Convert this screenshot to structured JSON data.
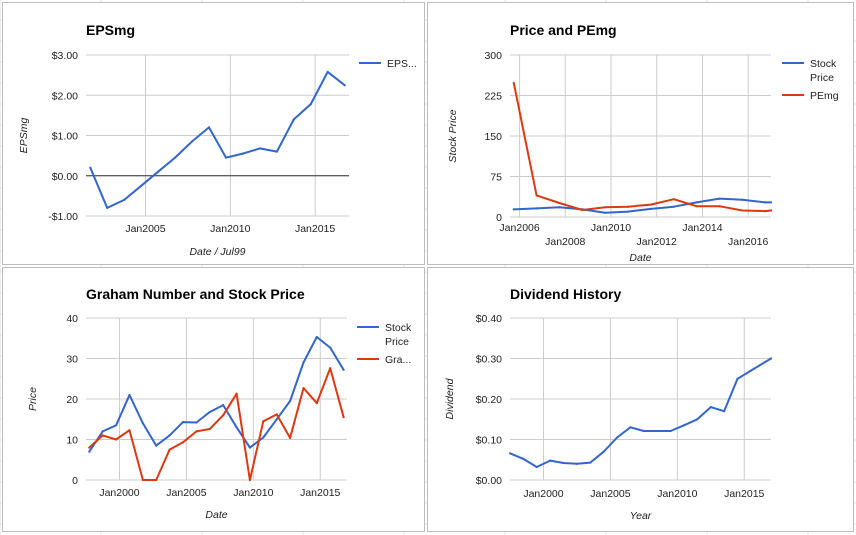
{
  "chart_data": [
    {
      "type": "line",
      "title": "EPSmg",
      "xlabel": "Date / Jul99",
      "ylabel": "EPSmg",
      "x_type": "date",
      "xlim": [
        "2001-06-30",
        "2016-12-31"
      ],
      "ylim": [
        -1.0,
        3.0
      ],
      "x_ticks": [
        {
          "date": "2005-01-01",
          "label": "Jan2005"
        },
        {
          "date": "2010-01-01",
          "label": "Jan2010"
        },
        {
          "date": "2015-01-01",
          "label": "Jan2015"
        }
      ],
      "y_ticks": [
        {
          "value": 3,
          "label": "$3.00"
        },
        {
          "value": 2,
          "label": "$2.00"
        },
        {
          "value": 1,
          "label": "$1.00"
        },
        {
          "value": 0,
          "label": "$0.00"
        },
        {
          "value": -1,
          "label": "-$1.00"
        }
      ],
      "zero_line": true,
      "legend": {
        "position": "right",
        "entries": [
          "EPS..."
        ]
      },
      "series": [
        {
          "name": "EPS...",
          "color": "#3366cc",
          "x": [
            "2001-09-30",
            "2002-09-30",
            "2003-09-30",
            "2004-09-30",
            "2005-09-30",
            "2006-09-30",
            "2007-09-30",
            "2008-09-30",
            "2009-09-30",
            "2010-09-30",
            "2011-09-30",
            "2012-09-30",
            "2013-09-30",
            "2014-09-30",
            "2015-09-30",
            "2016-09-30"
          ],
          "y": [
            0.2,
            -0.8,
            -0.6,
            -0.25,
            0.1,
            0.45,
            0.85,
            1.2,
            0.45,
            0.55,
            0.68,
            0.6,
            1.4,
            1.78,
            2.58,
            2.25
          ]
        }
      ]
    },
    {
      "type": "line",
      "title": "Price and PEmg",
      "xlabel": "Date",
      "ylabel": "Stock Price",
      "x_type": "date",
      "xlim": [
        "2005-08-01",
        "2016-12-31"
      ],
      "ylim": [
        0,
        300
      ],
      "x_ticks": [
        {
          "date": "2006-01-01",
          "label": "Jan2006",
          "row": 0
        },
        {
          "date": "2008-01-01",
          "label": "Jan2008",
          "row": 1
        },
        {
          "date": "2010-01-01",
          "label": "Jan2010",
          "row": 0
        },
        {
          "date": "2012-01-01",
          "label": "Jan2012",
          "row": 1
        },
        {
          "date": "2014-01-01",
          "label": "Jan2014",
          "row": 0
        },
        {
          "date": "2016-01-01",
          "label": "Jan2016",
          "row": 1
        }
      ],
      "y_ticks": [
        {
          "value": 300,
          "label": "300"
        },
        {
          "value": 225,
          "label": "225"
        },
        {
          "value": 150,
          "label": "150"
        },
        {
          "value": 75,
          "label": "75"
        },
        {
          "value": 0,
          "label": "0"
        }
      ],
      "legend": {
        "position": "right",
        "entries": [
          "Stock Price",
          "PEmg"
        ]
      },
      "series": [
        {
          "name": "Stock Price",
          "legend_lines": [
            "Stock",
            "Price"
          ],
          "color": "#3366cc",
          "x": [
            "2005-09-30",
            "2006-09-30",
            "2007-09-30",
            "2008-09-30",
            "2009-09-30",
            "2010-09-30",
            "2011-09-30",
            "2012-09-30",
            "2013-09-30",
            "2014-09-30",
            "2015-09-30",
            "2016-09-30",
            "2016-12-31"
          ],
          "y": [
            14,
            16,
            18,
            14,
            8,
            10,
            15,
            19,
            27,
            34,
            32,
            27,
            27
          ]
        },
        {
          "name": "PEmg",
          "legend_lines": [
            "PEmg"
          ],
          "color": "#dc3912",
          "x": [
            "2005-09-30",
            "2006-09-30",
            "2007-09-30",
            "2008-09-30",
            "2009-09-30",
            "2010-09-30",
            "2011-09-30",
            "2012-09-30",
            "2013-09-30",
            "2014-09-30",
            "2015-09-30",
            "2016-09-30",
            "2016-12-31"
          ],
          "y": [
            248,
            40,
            26,
            13,
            18,
            19,
            23,
            33,
            20,
            20,
            12,
            11,
            12
          ]
        }
      ]
    },
    {
      "type": "line",
      "title": "Graham Number and Stock Price",
      "xlabel": "Date",
      "ylabel": "Price",
      "x_type": "date",
      "xlim": [
        "1997-07-01",
        "2016-12-31"
      ],
      "ylim": [
        0,
        40
      ],
      "x_ticks": [
        {
          "date": "2000-01-01",
          "label": "Jan2000"
        },
        {
          "date": "2005-01-01",
          "label": "Jan2005"
        },
        {
          "date": "2010-01-01",
          "label": "Jan2010"
        },
        {
          "date": "2015-01-01",
          "label": "Jan2015"
        }
      ],
      "y_ticks": [
        {
          "value": 40,
          "label": "40"
        },
        {
          "value": 30,
          "label": "30"
        },
        {
          "value": 20,
          "label": "20"
        },
        {
          "value": 10,
          "label": "10"
        },
        {
          "value": 0,
          "label": "0"
        }
      ],
      "legend": {
        "position": "right",
        "entries": [
          "Stock Price",
          "Gra..."
        ]
      },
      "series": [
        {
          "name": "Stock Price",
          "legend_lines": [
            "Stock",
            "Price"
          ],
          "color": "#3366cc",
          "x": [
            "1997-09-30",
            "1998-09-30",
            "1999-09-30",
            "2000-09-30",
            "2001-09-30",
            "2002-09-30",
            "2003-09-30",
            "2004-09-30",
            "2005-09-30",
            "2006-09-30",
            "2007-09-30",
            "2008-09-30",
            "2009-09-30",
            "2010-09-30",
            "2011-09-30",
            "2012-09-30",
            "2013-09-30",
            "2014-09-30",
            "2015-09-30",
            "2016-09-30"
          ],
          "y": [
            7,
            12,
            13.5,
            21,
            14,
            8.5,
            11,
            14.3,
            14.2,
            16.8,
            18.5,
            13,
            8,
            10.5,
            15,
            19.5,
            29,
            35.3,
            32.7,
            27.2
          ]
        },
        {
          "name": "Gra...",
          "legend_lines": [
            "Gra..."
          ],
          "color": "#dc3912",
          "x": [
            "1997-09-30",
            "1998-09-30",
            "1999-09-30",
            "2000-09-30",
            "2001-09-30",
            "2002-09-30",
            "2003-09-30",
            "2004-09-30",
            "2005-09-30",
            "2006-09-30",
            "2007-09-30",
            "2008-09-30",
            "2009-09-30",
            "2010-09-30",
            "2011-09-30",
            "2012-09-30",
            "2013-09-30",
            "2014-09-30",
            "2015-09-30",
            "2016-09-30"
          ],
          "y": [
            8,
            11,
            10,
            12.3,
            0,
            0,
            7.5,
            9.3,
            12,
            12.6,
            16,
            21.3,
            0,
            14.5,
            16.2,
            10.4,
            22.7,
            19,
            27.6,
            15.5
          ]
        }
      ]
    },
    {
      "type": "line",
      "title": "Dividend History",
      "xlabel": "Year",
      "ylabel": "Dividend",
      "x_type": "date",
      "xlim": [
        "1997-07-01",
        "2016-12-31"
      ],
      "ylim": [
        0,
        0.4
      ],
      "x_ticks": [
        {
          "date": "2000-01-01",
          "label": "Jan2000"
        },
        {
          "date": "2005-01-01",
          "label": "Jan2005"
        },
        {
          "date": "2010-01-01",
          "label": "Jan2010"
        },
        {
          "date": "2015-01-01",
          "label": "Jan2015"
        }
      ],
      "y_ticks": [
        {
          "value": 0.4,
          "label": "$0.40"
        },
        {
          "value": 0.3,
          "label": "$0.30"
        },
        {
          "value": 0.2,
          "label": "$0.20"
        },
        {
          "value": 0.1,
          "label": "$0.10"
        },
        {
          "value": 0,
          "label": "$0.00"
        }
      ],
      "series": [
        {
          "name": "",
          "color": "#3366cc",
          "x": [
            "1997-07-01",
            "1998-07-01",
            "1999-07-01",
            "2000-07-01",
            "2001-07-01",
            "2002-07-01",
            "2003-07-01",
            "2004-07-01",
            "2005-07-01",
            "2006-07-01",
            "2007-07-01",
            "2008-07-01",
            "2009-07-01",
            "2010-07-01",
            "2011-07-01",
            "2012-07-01",
            "2013-07-01",
            "2014-07-01",
            "2015-07-01",
            "2016-12-31"
          ],
          "y": [
            0.066,
            0.052,
            0.032,
            0.048,
            0.042,
            0.04,
            0.043,
            0.07,
            0.105,
            0.13,
            0.121,
            0.121,
            0.121,
            0.135,
            0.15,
            0.18,
            0.17,
            0.25,
            0.27,
            0.3
          ]
        }
      ]
    }
  ]
}
